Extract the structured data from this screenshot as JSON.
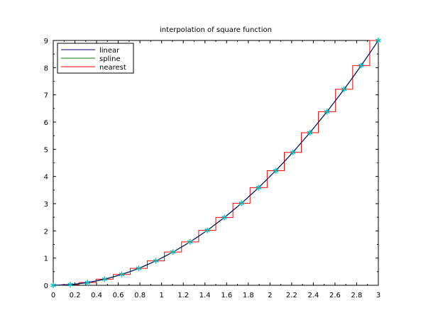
{
  "chart_data": {
    "type": "line",
    "title": "interpolation of square function",
    "xlabel": "",
    "ylabel": "",
    "xlim": [
      0,
      3
    ],
    "ylim": [
      0,
      9
    ],
    "xticks": [
      "0",
      "0.2",
      "0.4",
      "0.6",
      "0.8",
      "1",
      "1.2",
      "1.4",
      "1.6",
      "1.8",
      "2",
      "2.2",
      "2.4",
      "2.6",
      "2.8",
      "3"
    ],
    "yticks": [
      "0",
      "1",
      "2",
      "3",
      "4",
      "5",
      "6",
      "7",
      "8",
      "9"
    ],
    "grid": false,
    "legend": {
      "position": "top-left",
      "entries": [
        "linear",
        "spline",
        "nearest"
      ]
    },
    "sample_points": {
      "x": [
        0,
        0.158,
        0.316,
        0.474,
        0.632,
        0.789,
        0.947,
        1.105,
        1.263,
        1.421,
        1.579,
        1.737,
        1.895,
        2.053,
        2.211,
        2.368,
        2.526,
        2.684,
        2.842,
        3
      ],
      "y": [
        0,
        0.025,
        0.1,
        0.224,
        0.399,
        0.623,
        0.898,
        1.222,
        1.596,
        2.019,
        2.493,
        3.017,
        3.59,
        4.213,
        4.886,
        5.609,
        6.382,
        7.205,
        8.078,
        9
      ],
      "marker": "asterisk",
      "color": "#00c0c0"
    },
    "series": [
      {
        "name": "linear",
        "color": "#000080",
        "method": "linear"
      },
      {
        "name": "spline",
        "color": "#008000",
        "method": "spline"
      },
      {
        "name": "nearest",
        "color": "#ff0000",
        "method": "nearest"
      }
    ]
  }
}
